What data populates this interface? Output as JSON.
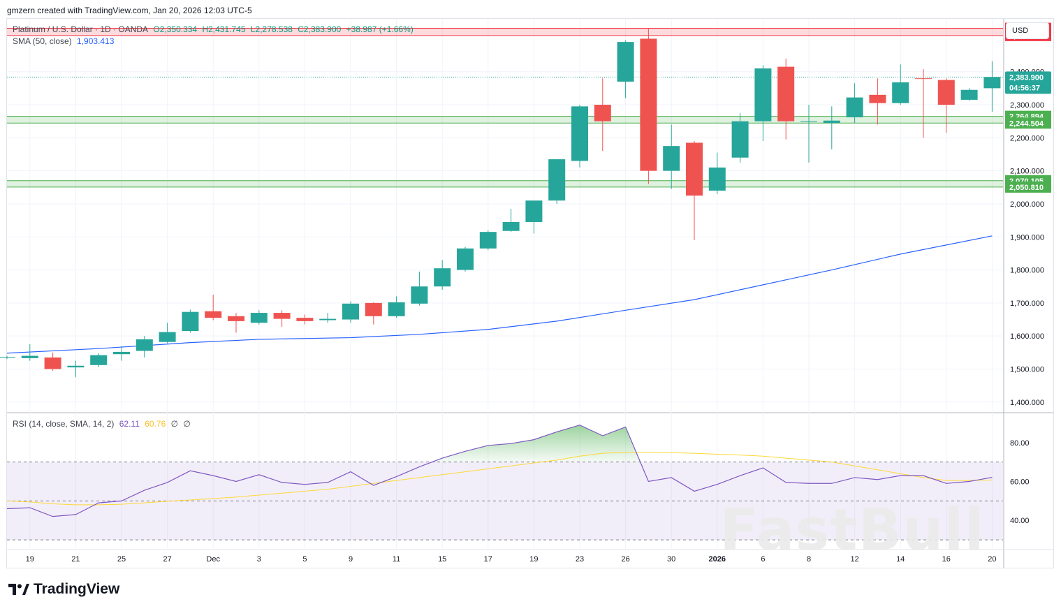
{
  "header": {
    "created_by": "gmzern created with TradingView.com, Jan 20, 2026 12:03 UTC-5"
  },
  "legend": {
    "symbol": "Platinum / U.S. Dollar · 1D · OANDA",
    "open": "O2,350.334",
    "high": "H2,431.745",
    "low": "L2,278.538",
    "close": "C2,383.900",
    "change": "+38.987 (+1.66%)",
    "sma_label": "SMA (50, close)",
    "sma_value": "1,903.413"
  },
  "currency_button": "USD",
  "rsi_legend": {
    "label": "RSI (14, close, SMA, 14, 2)",
    "rsi_value": "62.11",
    "sma_value": "60.76",
    "div1": "∅",
    "div2": "∅"
  },
  "watermark": "FastBull",
  "brand": "TradingView",
  "colors": {
    "up": "#26a69a",
    "down": "#ef5350",
    "sma": "#2962ff",
    "rsi": "#7e57c2",
    "rsi_sma": "#fdd835",
    "resistance": "#f23645",
    "support": "#4caf50"
  },
  "chart_data": {
    "type": "candlestick",
    "price_axis": {
      "ticks": [
        1400,
        1500,
        1600,
        1700,
        1800,
        1900,
        2000,
        2100,
        2200,
        2300,
        2400
      ],
      "ylim": [
        1370,
        2560
      ]
    },
    "time_axis": {
      "labels": [
        {
          "label": "19",
          "index": 1
        },
        {
          "label": "21",
          "index": 3
        },
        {
          "label": "25",
          "index": 5
        },
        {
          "label": "27",
          "index": 7
        },
        {
          "label": "Dec",
          "index": 9
        },
        {
          "label": "3",
          "index": 11
        },
        {
          "label": "5",
          "index": 13
        },
        {
          "label": "9",
          "index": 15
        },
        {
          "label": "11",
          "index": 17
        },
        {
          "label": "15",
          "index": 19
        },
        {
          "label": "17",
          "index": 21
        },
        {
          "label": "19",
          "index": 23
        },
        {
          "label": "23",
          "index": 25
        },
        {
          "label": "26",
          "index": 27
        },
        {
          "label": "30",
          "index": 29
        },
        {
          "label": "2026",
          "index": 31,
          "bold": true
        },
        {
          "label": "6",
          "index": 33
        },
        {
          "label": "8",
          "index": 35
        },
        {
          "label": "12",
          "index": 37
        },
        {
          "label": "14",
          "index": 39
        },
        {
          "label": "16",
          "index": 41
        },
        {
          "label": "20",
          "index": 43
        }
      ]
    },
    "candles": [
      {
        "o": 1535,
        "h": 1540,
        "l": 1530,
        "c": 1537
      },
      {
        "o": 1533,
        "h": 1575,
        "l": 1525,
        "c": 1540
      },
      {
        "o": 1535,
        "h": 1550,
        "l": 1495,
        "c": 1500
      },
      {
        "o": 1505,
        "h": 1525,
        "l": 1475,
        "c": 1510
      },
      {
        "o": 1512,
        "h": 1548,
        "l": 1505,
        "c": 1542
      },
      {
        "o": 1545,
        "h": 1570,
        "l": 1525,
        "c": 1552
      },
      {
        "o": 1555,
        "h": 1600,
        "l": 1535,
        "c": 1590
      },
      {
        "o": 1582,
        "h": 1640,
        "l": 1578,
        "c": 1612
      },
      {
        "o": 1615,
        "h": 1680,
        "l": 1610,
        "c": 1673
      },
      {
        "o": 1675,
        "h": 1725,
        "l": 1648,
        "c": 1655
      },
      {
        "o": 1660,
        "h": 1670,
        "l": 1610,
        "c": 1645
      },
      {
        "o": 1640,
        "h": 1678,
        "l": 1635,
        "c": 1670
      },
      {
        "o": 1670,
        "h": 1678,
        "l": 1628,
        "c": 1652
      },
      {
        "o": 1655,
        "h": 1665,
        "l": 1635,
        "c": 1645
      },
      {
        "o": 1648,
        "h": 1670,
        "l": 1640,
        "c": 1652
      },
      {
        "o": 1650,
        "h": 1705,
        "l": 1640,
        "c": 1698
      },
      {
        "o": 1700,
        "h": 1702,
        "l": 1635,
        "c": 1660
      },
      {
        "o": 1660,
        "h": 1720,
        "l": 1655,
        "c": 1702
      },
      {
        "o": 1698,
        "h": 1795,
        "l": 1692,
        "c": 1750
      },
      {
        "o": 1750,
        "h": 1830,
        "l": 1740,
        "c": 1805
      },
      {
        "o": 1800,
        "h": 1870,
        "l": 1795,
        "c": 1865
      },
      {
        "o": 1865,
        "h": 1920,
        "l": 1860,
        "c": 1915
      },
      {
        "o": 1918,
        "h": 1985,
        "l": 1915,
        "c": 1945
      },
      {
        "o": 1945,
        "h": 2010,
        "l": 1910,
        "c": 2010
      },
      {
        "o": 2010,
        "h": 2135,
        "l": 2000,
        "c": 2135
      },
      {
        "o": 2130,
        "h": 2300,
        "l": 2110,
        "c": 2295
      },
      {
        "o": 2300,
        "h": 2380,
        "l": 2160,
        "c": 2250
      },
      {
        "o": 2370,
        "h": 2495,
        "l": 2320,
        "c": 2490
      },
      {
        "o": 2500,
        "h": 2530,
        "l": 2060,
        "c": 2100
      },
      {
        "o": 2100,
        "h": 2240,
        "l": 2045,
        "c": 2175
      },
      {
        "o": 2185,
        "h": 2190,
        "l": 1890,
        "c": 2025
      },
      {
        "o": 2040,
        "h": 2155,
        "l": 2030,
        "c": 2110
      },
      {
        "o": 2140,
        "h": 2275,
        "l": 2125,
        "c": 2250
      },
      {
        "o": 2250,
        "h": 2420,
        "l": 2190,
        "c": 2410
      },
      {
        "o": 2415,
        "h": 2440,
        "l": 2195,
        "c": 2250
      },
      {
        "o": 2248,
        "h": 2300,
        "l": 2125,
        "c": 2250
      },
      {
        "o": 2245,
        "h": 2295,
        "l": 2165,
        "c": 2252
      },
      {
        "o": 2262,
        "h": 2365,
        "l": 2245,
        "c": 2322
      },
      {
        "o": 2330,
        "h": 2380,
        "l": 2240,
        "c": 2305
      },
      {
        "o": 2305,
        "h": 2422,
        "l": 2300,
        "c": 2368
      },
      {
        "o": 2380,
        "h": 2408,
        "l": 2200,
        "c": 2378
      },
      {
        "o": 2375,
        "h": 2380,
        "l": 2215,
        "c": 2300
      },
      {
        "o": 2315,
        "h": 2350,
        "l": 2312,
        "c": 2345
      },
      {
        "o": 2350,
        "h": 2432,
        "l": 2279,
        "c": 2384
      }
    ],
    "sma": {
      "name": "SMA (50, close)",
      "points": [
        {
          "i": 0,
          "v": 1548
        },
        {
          "i": 4,
          "v": 1562
        },
        {
          "i": 8,
          "v": 1580
        },
        {
          "i": 11,
          "v": 1590
        },
        {
          "i": 15,
          "v": 1595
        },
        {
          "i": 18,
          "v": 1605
        },
        {
          "i": 21,
          "v": 1620
        },
        {
          "i": 24,
          "v": 1645
        },
        {
          "i": 27,
          "v": 1678
        },
        {
          "i": 30,
          "v": 1710
        },
        {
          "i": 33,
          "v": 1755
        },
        {
          "i": 36,
          "v": 1800
        },
        {
          "i": 39,
          "v": 1848
        },
        {
          "i": 43,
          "v": 1903
        }
      ]
    },
    "levels": [
      {
        "type": "resistance",
        "top": 2531.353,
        "bottom": 2509.569,
        "top_label": "2,531.353",
        "bottom_label": "2,509.569"
      },
      {
        "type": "support",
        "top": 2264.894,
        "bottom": 2244.504,
        "top_label": "2,264.894",
        "bottom_label": "2,244.504"
      },
      {
        "type": "support",
        "top": 2070.105,
        "bottom": 2050.81,
        "top_label": "2,070.105",
        "bottom_label": "2,050.810"
      }
    ],
    "last_price": {
      "value": 2383.9,
      "label": "2,383.900",
      "countdown": "04:56:37"
    },
    "rsi": {
      "ticks": [
        40,
        60,
        80
      ],
      "bands": {
        "upper": 70,
        "middle": 50,
        "lower": 30
      },
      "ylim": [
        25,
        95
      ],
      "values": [
        46,
        46.5,
        42,
        43,
        49,
        50,
        55.5,
        59.5,
        65.5,
        63,
        60,
        63.5,
        59.5,
        58.5,
        59.5,
        65,
        58,
        62.5,
        67.5,
        72,
        75.5,
        78.5,
        79.5,
        81.5,
        85.5,
        89,
        83.5,
        88,
        60,
        62,
        55,
        58.5,
        63,
        67,
        59.5,
        59,
        59,
        62,
        61,
        63,
        63,
        59,
        60,
        62.11
      ],
      "sma_values": [
        50,
        49.5,
        48.5,
        48,
        48,
        48.3,
        49,
        49.8,
        50.5,
        51.2,
        52,
        53,
        54,
        55,
        56,
        57.5,
        59,
        60.5,
        62,
        63.5,
        65,
        66.5,
        68,
        69.5,
        71,
        73,
        74.5,
        75,
        75,
        74.8,
        74.5,
        74,
        73.6,
        73,
        72,
        71,
        70,
        68,
        66,
        64,
        62,
        60.5,
        60.5,
        60.76
      ]
    }
  }
}
